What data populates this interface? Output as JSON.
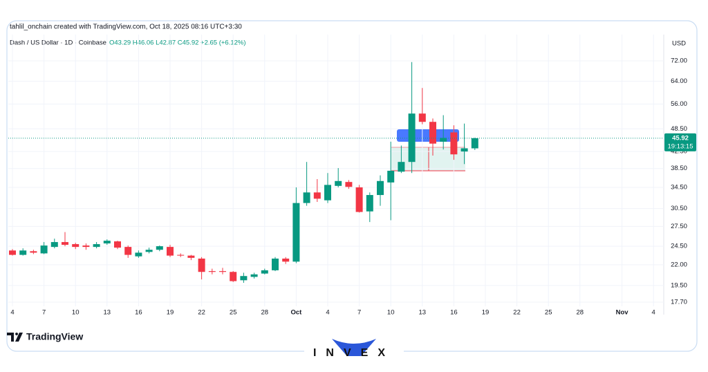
{
  "chart_data": {
    "type": "candlestick",
    "title": "tahlil_onchain created with TradingView.com, Oct 18, 2025 08:16 UTC+3:30",
    "subtitle": "Dash / US Dollar · 1D · Coinbase",
    "ohlc_legend": "O43.29 H46.06 L42.87 C45.92 +2.65 (+6.12%)",
    "currency": "USD",
    "countdown": "19:13:15",
    "brand": "TradingView",
    "watermark": "INVEX",
    "up_color": "#089981",
    "down_color": "#f23645",
    "log_scale": true,
    "x": [
      "2025-09-04",
      "2025-09-05",
      "2025-09-06",
      "2025-09-07",
      "2025-09-08",
      "2025-09-09",
      "2025-09-10",
      "2025-09-11",
      "2025-09-12",
      "2025-09-13",
      "2025-09-14",
      "2025-09-15",
      "2025-09-16",
      "2025-09-17",
      "2025-09-18",
      "2025-09-19",
      "2025-09-20",
      "2025-09-21",
      "2025-09-22",
      "2025-09-23",
      "2025-09-24",
      "2025-09-25",
      "2025-09-26",
      "2025-09-27",
      "2025-09-28",
      "2025-09-29",
      "2025-09-30",
      "2025-10-01",
      "2025-10-02",
      "2025-10-03",
      "2025-10-04",
      "2025-10-05",
      "2025-10-06",
      "2025-10-07",
      "2025-10-08",
      "2025-10-09",
      "2025-10-10",
      "2025-10-11",
      "2025-10-12",
      "2025-10-13",
      "2025-10-14",
      "2025-10-15",
      "2025-10-16",
      "2025-10-17",
      "2025-10-18"
    ],
    "open": [
      23.9,
      23.3,
      23.8,
      23.5,
      24.4,
      25.1,
      24.8,
      24.6,
      24.4,
      24.9,
      25.2,
      24.4,
      23.1,
      23.7,
      24.0,
      24.4,
      23.3,
      23.2,
      22.8,
      21.2,
      21.2,
      21.1,
      20.1,
      20.5,
      20.9,
      21.3,
      22.8,
      22.4,
      31.5,
      33.5,
      32.0,
      34.8,
      35.6,
      34.5,
      30.0,
      33.0,
      35.5,
      37.8,
      40.0,
      53.0,
      50.5,
      45.0,
      47.5,
      42.5,
      43.29
    ],
    "high": [
      24.1,
      24.2,
      24.0,
      25.1,
      25.6,
      26.6,
      25.0,
      24.9,
      25.1,
      25.5,
      25.3,
      24.6,
      23.9,
      24.3,
      24.6,
      24.7,
      23.5,
      23.3,
      23.0,
      21.5,
      21.6,
      21.2,
      21.0,
      21.0,
      21.5,
      23.0,
      23.0,
      34.5,
      40.0,
      36.2,
      37.5,
      38.6,
      36.0,
      35.0,
      33.5,
      37.0,
      45.0,
      44.0,
      71.5,
      61.5,
      51.5,
      52.5,
      49.5,
      50.0,
      46.06
    ],
    "low": [
      23.2,
      23.2,
      23.4,
      23.4,
      24.2,
      24.5,
      24.1,
      24.0,
      24.2,
      24.7,
      24.1,
      22.9,
      22.9,
      23.5,
      23.8,
      23.0,
      23.0,
      22.6,
      20.2,
      20.8,
      20.8,
      19.9,
      19.8,
      20.3,
      20.8,
      21.2,
      22.1,
      22.2,
      31.0,
      31.7,
      31.5,
      34.5,
      34.2,
      29.8,
      28.2,
      31.0,
      28.5,
      37.5,
      37.5,
      49.8,
      41.5,
      43.0,
      40.5,
      39.5,
      42.87
    ],
    "close": [
      23.3,
      23.9,
      23.6,
      24.6,
      25.1,
      24.7,
      24.4,
      24.4,
      24.8,
      25.3,
      24.3,
      23.3,
      23.6,
      24.0,
      24.5,
      23.2,
      23.2,
      22.9,
      21.1,
      21.1,
      21.1,
      20.0,
      20.6,
      20.8,
      21.3,
      22.8,
      22.4,
      31.5,
      33.5,
      32.3,
      35.0,
      35.8,
      34.6,
      29.9,
      33.0,
      35.8,
      38.0,
      40.0,
      53.0,
      50.5,
      44.5,
      46.0,
      41.8,
      43.3,
      45.92
    ],
    "ylim": [
      16.46,
      83.9
    ],
    "yticks": [
      {
        "value": 17.7,
        "label": "17.70"
      },
      {
        "value": 19.5,
        "label": "19.50"
      },
      {
        "value": 22,
        "label": "22.00"
      },
      {
        "value": 24.5,
        "label": "24.50"
      },
      {
        "value": 27.5,
        "label": "27.50"
      },
      {
        "value": 30.5,
        "label": "30.50"
      },
      {
        "value": 34.5,
        "label": "34.50"
      },
      {
        "value": 38.5,
        "label": "38.50"
      },
      {
        "value": 42.5,
        "label": "42.50"
      },
      {
        "value": 48.5,
        "label": "48.50"
      },
      {
        "value": 56,
        "label": "56.00"
      },
      {
        "value": 64,
        "label": "64.00"
      },
      {
        "value": 72,
        "label": "72.00"
      }
    ],
    "xticks": [
      {
        "value": "2025-09-04",
        "label": "4"
      },
      {
        "value": "2025-09-07",
        "label": "7"
      },
      {
        "value": "2025-09-10",
        "label": "10"
      },
      {
        "value": "2025-09-13",
        "label": "13"
      },
      {
        "value": "2025-09-16",
        "label": "16"
      },
      {
        "value": "2025-09-19",
        "label": "19"
      },
      {
        "value": "2025-09-22",
        "label": "22"
      },
      {
        "value": "2025-09-25",
        "label": "25"
      },
      {
        "value": "2025-09-28",
        "label": "28"
      },
      {
        "value": "2025-10-01",
        "label": "Oct"
      },
      {
        "value": "2025-10-04",
        "label": "4"
      },
      {
        "value": "2025-10-07",
        "label": "7"
      },
      {
        "value": "2025-10-10",
        "label": "10"
      },
      {
        "value": "2025-10-13",
        "label": "13"
      },
      {
        "value": "2025-10-16",
        "label": "16"
      },
      {
        "value": "2025-10-19",
        "label": "19"
      },
      {
        "value": "2025-10-22",
        "label": "22"
      },
      {
        "value": "2025-10-25",
        "label": "25"
      },
      {
        "value": "2025-10-28",
        "label": "28"
      },
      {
        "value": "2025-11-01",
        "label": "Nov"
      },
      {
        "value": "2025-11-04",
        "label": "4"
      }
    ]
  }
}
